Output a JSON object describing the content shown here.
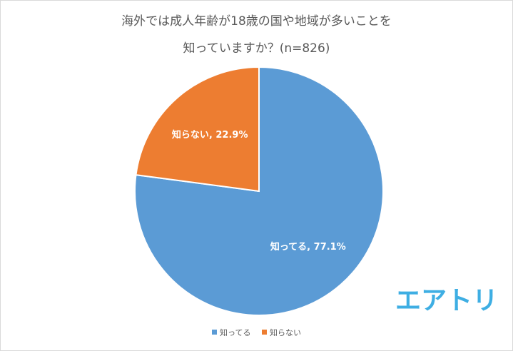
{
  "chart_data": {
    "type": "pie",
    "title_lines": [
      "海外では成人年齢が18歳の国や地域が多いことを",
      "知っていますか？(n=826)"
    ],
    "slices": [
      {
        "label": "知ってる",
        "value": 77.1,
        "data_label": "知ってる, 77.1%",
        "color": "#5b9bd5"
      },
      {
        "label": "知らない",
        "value": 22.9,
        "data_label": "知らない, 22.9%",
        "color": "#ed7d31"
      }
    ],
    "legend": {
      "placement": "bottom",
      "entries": [
        "知ってる",
        "知らない"
      ]
    }
  },
  "logo": {
    "text": "エアトリ",
    "color": "#3eaee3"
  }
}
